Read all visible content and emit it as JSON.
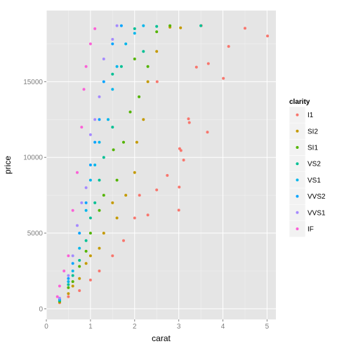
{
  "chart_data": {
    "type": "scatter",
    "xlabel": "carat",
    "ylabel": "price",
    "xlim": [
      0,
      5.2
    ],
    "ylim": [
      -700,
      19700
    ],
    "x_ticks": [
      0,
      1,
      2,
      3,
      4,
      5
    ],
    "y_ticks": [
      0,
      5000,
      10000,
      15000
    ],
    "x_tick_labels": [
      "0",
      "1",
      "2",
      "3",
      "4",
      "5"
    ],
    "y_tick_labels": [
      "0",
      "5000",
      "10000",
      "15000"
    ],
    "grid": true,
    "legend": {
      "title": "clarity",
      "placement": "right"
    },
    "series": [
      {
        "name": "I1",
        "color": "#F8766D",
        "points": [
          [
            5.01,
            18018
          ],
          [
            4.5,
            18531
          ],
          [
            4.13,
            17329
          ],
          [
            4.01,
            15223
          ],
          [
            3.65,
            11668
          ],
          [
            3.51,
            18701
          ],
          [
            3.4,
            15964
          ],
          [
            3.67,
            16193
          ],
          [
            3.24,
            12300
          ],
          [
            3.22,
            12545
          ],
          [
            3.11,
            9823
          ],
          [
            3.05,
            10453
          ],
          [
            3.02,
            10577
          ],
          [
            3.01,
            8040
          ],
          [
            3.0,
            6512
          ],
          [
            2.74,
            8807
          ],
          [
            2.51,
            14998
          ],
          [
            2.5,
            7854
          ],
          [
            2.3,
            6200
          ],
          [
            2.11,
            7500
          ],
          [
            2.0,
            6000
          ],
          [
            1.75,
            4500
          ],
          [
            1.5,
            3500
          ],
          [
            1.2,
            2500
          ],
          [
            1.0,
            1900
          ],
          [
            0.75,
            1200
          ],
          [
            0.5,
            800
          ],
          [
            0.3,
            400
          ]
        ]
      },
      {
        "name": "SI2",
        "color": "#C49A00",
        "points": [
          [
            3.04,
            18559
          ],
          [
            2.8,
            18600
          ],
          [
            2.5,
            17000
          ],
          [
            2.3,
            15000
          ],
          [
            2.2,
            12500
          ],
          [
            2.05,
            11000
          ],
          [
            2.0,
            9000
          ],
          [
            1.8,
            7500
          ],
          [
            1.6,
            6000
          ],
          [
            1.5,
            7000
          ],
          [
            1.3,
            5000
          ],
          [
            1.2,
            4000
          ],
          [
            1.0,
            3500
          ],
          [
            0.9,
            3000
          ],
          [
            0.75,
            2000
          ],
          [
            0.6,
            1500
          ],
          [
            0.5,
            1000
          ],
          [
            0.3,
            450
          ]
        ]
      },
      {
        "name": "SI1",
        "color": "#53B400",
        "points": [
          [
            2.8,
            18700
          ],
          [
            2.5,
            18300
          ],
          [
            2.3,
            16000
          ],
          [
            2.1,
            14000
          ],
          [
            2.0,
            16500
          ],
          [
            1.9,
            13000
          ],
          [
            1.75,
            11000
          ],
          [
            1.6,
            8500
          ],
          [
            1.52,
            10500
          ],
          [
            1.3,
            7500
          ],
          [
            1.2,
            6500
          ],
          [
            1.0,
            5000
          ],
          [
            0.9,
            3800
          ],
          [
            0.75,
            2800
          ],
          [
            0.6,
            1800
          ],
          [
            0.5,
            1400
          ],
          [
            0.3,
            500
          ]
        ]
      },
      {
        "name": "VS2",
        "color": "#00C094",
        "points": [
          [
            3.5,
            18700
          ],
          [
            2.5,
            18650
          ],
          [
            2.2,
            17000
          ],
          [
            2.0,
            18500
          ],
          [
            1.7,
            16000
          ],
          [
            1.5,
            15500
          ],
          [
            1.5,
            12000
          ],
          [
            1.3,
            10000
          ],
          [
            1.2,
            8500
          ],
          [
            1.1,
            7000
          ],
          [
            1.0,
            6000
          ],
          [
            0.9,
            4500
          ],
          [
            0.75,
            3200
          ],
          [
            0.6,
            2200
          ],
          [
            0.5,
            1600
          ],
          [
            0.3,
            550
          ]
        ]
      },
      {
        "name": "VS1",
        "color": "#00B6EB",
        "points": [
          [
            2.2,
            18700
          ],
          [
            2.0,
            18200
          ],
          [
            1.8,
            17500
          ],
          [
            1.6,
            16000
          ],
          [
            1.5,
            14500
          ],
          [
            1.4,
            12500
          ],
          [
            1.2,
            11000
          ],
          [
            1.1,
            9500
          ],
          [
            1.0,
            8500
          ],
          [
            0.9,
            6500
          ],
          [
            0.75,
            4000
          ],
          [
            0.6,
            2500
          ],
          [
            0.5,
            1800
          ],
          [
            0.3,
            600
          ]
        ]
      },
      {
        "name": "VVS2",
        "color": "#06A4FF",
        "points": [
          [
            1.7,
            18700
          ],
          [
            1.5,
            17500
          ],
          [
            1.3,
            15000
          ],
          [
            1.2,
            12500
          ],
          [
            1.1,
            11000
          ],
          [
            1.0,
            9500
          ],
          [
            0.9,
            7000
          ],
          [
            0.75,
            5000
          ],
          [
            0.6,
            3000
          ],
          [
            0.5,
            2000
          ],
          [
            0.3,
            650
          ]
        ]
      },
      {
        "name": "VVS1",
        "color": "#A58AFF",
        "points": [
          [
            1.6,
            18700
          ],
          [
            1.5,
            17800
          ],
          [
            1.3,
            16500
          ],
          [
            1.2,
            14000
          ],
          [
            1.1,
            12500
          ],
          [
            1.0,
            11500
          ],
          [
            0.9,
            8000
          ],
          [
            0.8,
            7000
          ],
          [
            0.7,
            5500
          ],
          [
            0.6,
            3500
          ],
          [
            0.5,
            2200
          ],
          [
            0.3,
            700
          ]
        ]
      },
      {
        "name": "IF",
        "color": "#FB61D7",
        "points": [
          [
            1.1,
            18500
          ],
          [
            1.0,
            17500
          ],
          [
            0.9,
            16000
          ],
          [
            0.85,
            14500
          ],
          [
            0.8,
            12000
          ],
          [
            0.7,
            9000
          ],
          [
            0.6,
            6500
          ],
          [
            0.5,
            3500
          ],
          [
            0.4,
            2500
          ],
          [
            0.3,
            1500
          ],
          [
            0.25,
            800
          ]
        ]
      }
    ]
  }
}
